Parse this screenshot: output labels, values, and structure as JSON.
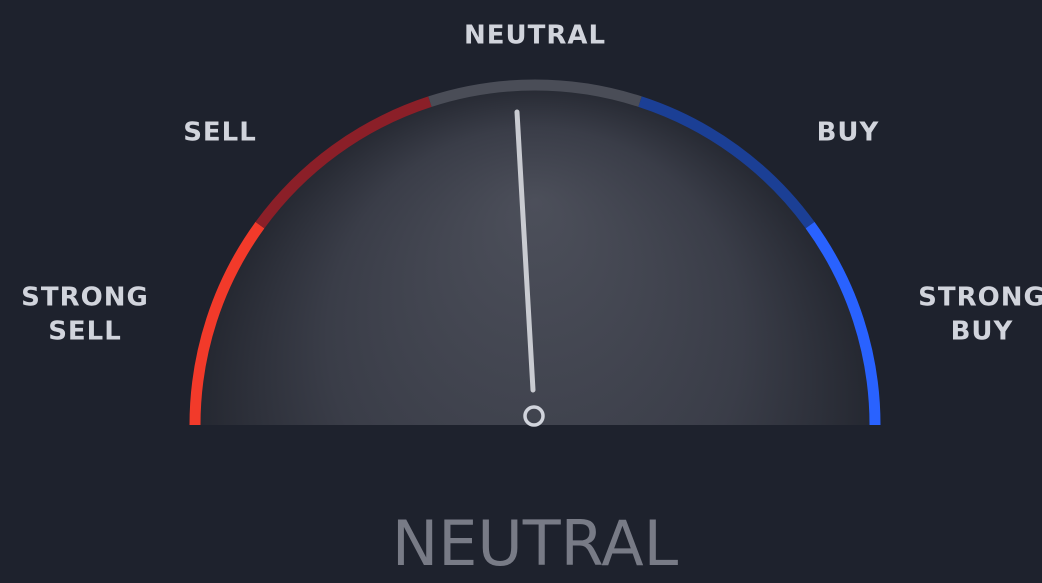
{
  "gauge": {
    "labels": {
      "strong_sell": [
        "STRONG",
        "SELL"
      ],
      "sell": "SELL",
      "neutral": "NEUTRAL",
      "buy": "BUY",
      "strong_buy": [
        "STRONG",
        "BUY"
      ]
    },
    "result": "NEUTRAL"
  }
}
